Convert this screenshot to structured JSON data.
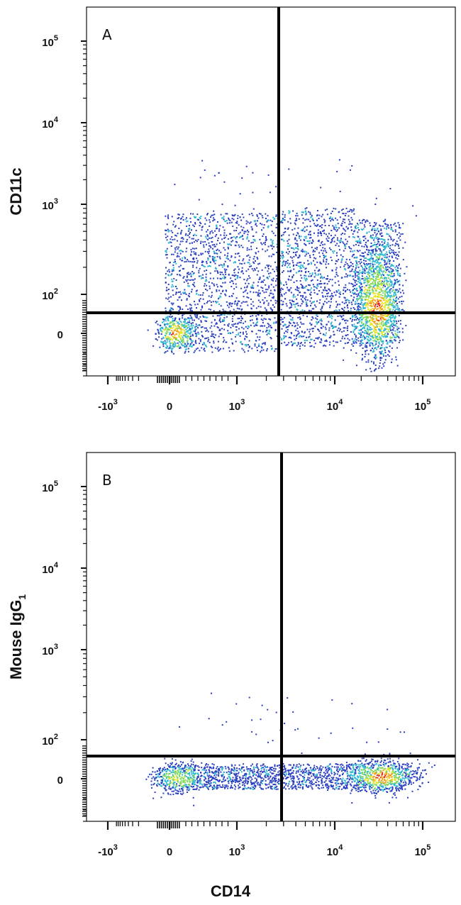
{
  "chart_data": [
    {
      "type": "scatter",
      "panel_label": "A",
      "xlabel": "CD14",
      "ylabel": "CD11c",
      "ylabel_sub": "",
      "x_scale": "biexponential",
      "y_scale": "biexponential",
      "x_ticks": [
        {
          "base": "-10",
          "exp": "3"
        },
        {
          "base": "0",
          "exp": ""
        },
        {
          "base": "10",
          "exp": "3"
        },
        {
          "base": "10",
          "exp": "4"
        },
        {
          "base": "10",
          "exp": "5"
        }
      ],
      "y_ticks": [
        {
          "base": "10",
          "exp": "5"
        },
        {
          "base": "10",
          "exp": "4"
        },
        {
          "base": "10",
          "exp": "3"
        },
        {
          "base": "10",
          "exp": "2"
        },
        {
          "base": "0",
          "exp": ""
        }
      ],
      "gates": {
        "x": 2500,
        "y": 60
      },
      "populations": [
        {
          "name": "CD14- CD11c-",
          "x_center": 50,
          "y_center": 0,
          "density": "high"
        },
        {
          "name": "CD14- CD11c+ scattered",
          "x_range": [
            0,
            2500
          ],
          "y_range": [
            30,
            800
          ],
          "density": "low"
        },
        {
          "name": "CD14+ CD11c+ scattered",
          "x_range": [
            2500,
            25000
          ],
          "y_range": [
            30,
            900
          ],
          "density": "low"
        },
        {
          "name": "CD14+ CD11c+",
          "x_center": 30000,
          "y_center": 80,
          "density": "very high"
        }
      ],
      "grid": false
    },
    {
      "type": "scatter",
      "panel_label": "B",
      "xlabel": "CD14",
      "ylabel": "Mouse IgG",
      "ylabel_sub": "1",
      "x_scale": "biexponential",
      "y_scale": "biexponential",
      "x_ticks": [
        {
          "base": "-10",
          "exp": "3"
        },
        {
          "base": "0",
          "exp": ""
        },
        {
          "base": "10",
          "exp": "3"
        },
        {
          "base": "10",
          "exp": "4"
        },
        {
          "base": "10",
          "exp": "5"
        }
      ],
      "y_ticks": [
        {
          "base": "10",
          "exp": "5"
        },
        {
          "base": "10",
          "exp": "4"
        },
        {
          "base": "10",
          "exp": "3"
        },
        {
          "base": "10",
          "exp": "2"
        },
        {
          "base": "0",
          "exp": ""
        }
      ],
      "gates": {
        "x": 2500,
        "y": 60
      },
      "populations": [
        {
          "name": "CD14- isotype-",
          "x_center": 50,
          "y_center": 0,
          "density": "high"
        },
        {
          "name": "CD14 intermediate band",
          "x_range": [
            200,
            20000
          ],
          "y_range": [
            -20,
            30
          ],
          "density": "low"
        },
        {
          "name": "CD14+ isotype-",
          "x_center": 35000,
          "y_center": 0,
          "density": "very high"
        }
      ],
      "grid": false
    }
  ],
  "colors": {
    "density_low": "#2a3fbf",
    "density_mid": "#2fb8d0",
    "density_high": "#e6e62a",
    "density_peak": "#e0201a",
    "axis": "#111111"
  }
}
